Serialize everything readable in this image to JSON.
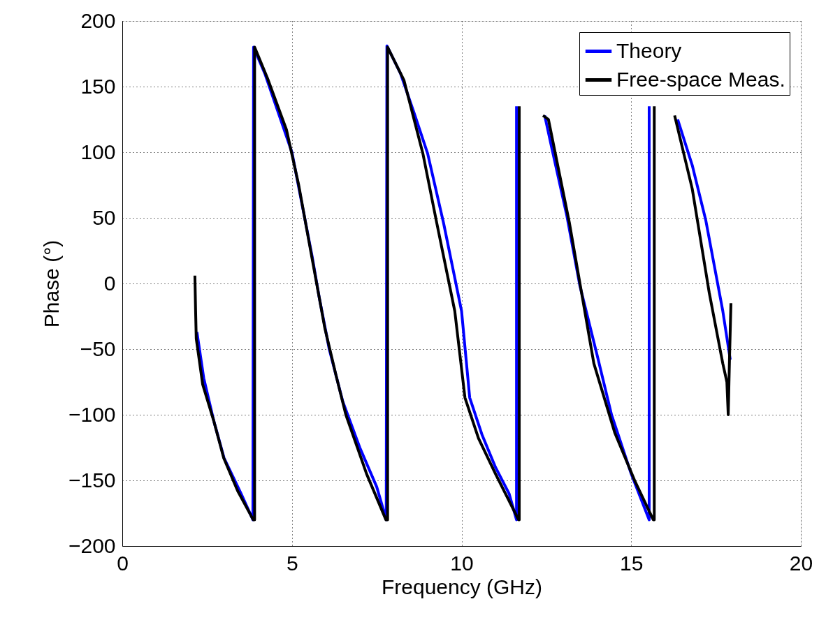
{
  "chart_data": {
    "type": "line",
    "xlabel": "Frequency (GHz)",
    "ylabel": "Phase (°)",
    "xlim": [
      0,
      20
    ],
    "ylim": [
      -200,
      200
    ],
    "xticks": [
      0,
      5,
      10,
      15,
      20
    ],
    "yticks": [
      -200,
      -150,
      -100,
      -50,
      0,
      50,
      100,
      150,
      200
    ],
    "grid": true,
    "legend": "top right",
    "marker": "none",
    "series": [
      {
        "name": "Theory",
        "color": "#0000ff",
        "x": [
          2.2,
          2.4,
          2.7,
          3.0,
          3.5,
          3.85,
          3.87,
          4.2,
          4.6,
          5.0,
          5.3,
          5.6,
          5.8,
          6.1,
          6.5,
          7.0,
          7.5,
          7.78,
          7.8,
          8.2,
          8.6,
          9.0,
          9.47,
          10.0,
          10.24,
          10.6,
          11.0,
          11.4,
          11.62,
          11.62,
          11.9,
          12.45,
          12.67,
          13.1,
          13.49,
          14.0,
          14.42,
          15.0,
          15.53,
          15.53,
          15.9,
          16.37,
          16.8,
          17.2,
          17.7,
          17.92
        ],
        "values": [
          -37,
          -72,
          -105,
          -133,
          -160,
          -180,
          180,
          160,
          130,
          100,
          60,
          20,
          -10,
          -50,
          -90,
          -125,
          -155,
          -180,
          181,
          160,
          130,
          99,
          46,
          -21,
          -87,
          -115,
          -140,
          -160,
          -180,
          135,
          null,
          128,
          102,
          52,
          -2,
          -55,
          -100,
          -145,
          -180,
          135,
          null,
          125,
          90,
          48,
          -21,
          -58
        ]
      },
      {
        "name": "Free-space Meas.",
        "color": "#000000",
        "x": [
          2.14,
          2.16,
          2.18,
          2.37,
          2.7,
          2.99,
          3.4,
          3.86,
          3.9,
          3.9,
          4.3,
          4.84,
          5.2,
          5.46,
          5.97,
          6.3,
          6.59,
          7.2,
          7.77,
          7.82,
          7.82,
          8.3,
          8.86,
          9.27,
          9.8,
          10.1,
          10.5,
          11.0,
          11.68,
          11.7,
          11.7,
          12.0,
          12.4,
          12.56,
          13.18,
          13.9,
          14.52,
          15.1,
          15.65,
          15.68,
          15.68,
          16.0,
          16.28,
          16.8,
          17.3,
          17.7,
          17.82,
          17.86,
          17.9,
          17.94
        ],
        "values": [
          6,
          -20,
          -42,
          -77,
          -105,
          -133,
          -158,
          -180,
          -180,
          180,
          155,
          117,
          75,
          38,
          -34,
          -70,
          -100,
          -145,
          -180,
          -180,
          180,
          155,
          99,
          46,
          -21,
          -87,
          -118,
          -145,
          -180,
          -180,
          135,
          null,
          128,
          125,
          46,
          -61,
          -114,
          -150,
          -180,
          -180,
          135,
          null,
          128,
          72,
          -7,
          -61,
          -75,
          -100,
          -55,
          -15
        ]
      }
    ]
  }
}
